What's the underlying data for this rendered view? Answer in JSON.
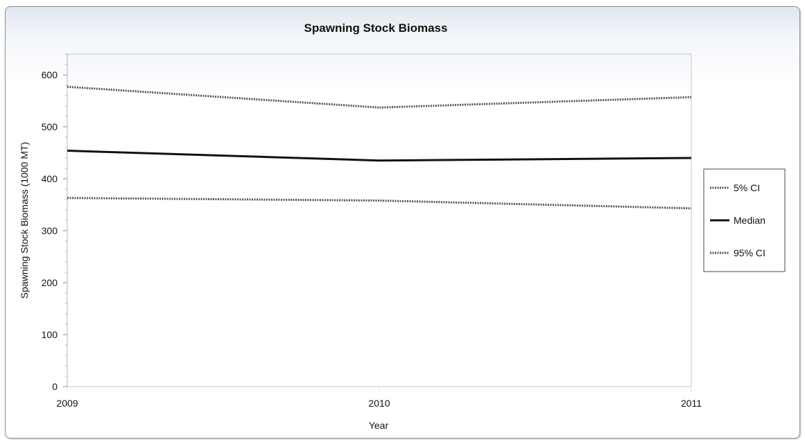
{
  "chart_data": {
    "type": "line",
    "title": "Spawning Stock Biomass",
    "xlabel": "Year",
    "ylabel": "Spawning Stock Biomass (1000 MT)",
    "x": [
      "2009",
      "2010",
      "2011"
    ],
    "xlim": [
      2009,
      2011
    ],
    "ylim": [
      0,
      640
    ],
    "yticks": [
      "0",
      "100",
      "200",
      "300",
      "400",
      "500",
      "600"
    ],
    "grid": false,
    "legend_position": "right",
    "series": [
      {
        "name": "5% CI",
        "values": [
          363,
          358,
          343
        ],
        "style": "dotted",
        "color": "#555555"
      },
      {
        "name": "Median",
        "values": [
          454,
          435,
          440
        ],
        "style": "solid",
        "color": "#111111"
      },
      {
        "name": "95% CI",
        "values": [
          577,
          537,
          557
        ],
        "style": "dotted",
        "color": "#555555"
      }
    ]
  }
}
